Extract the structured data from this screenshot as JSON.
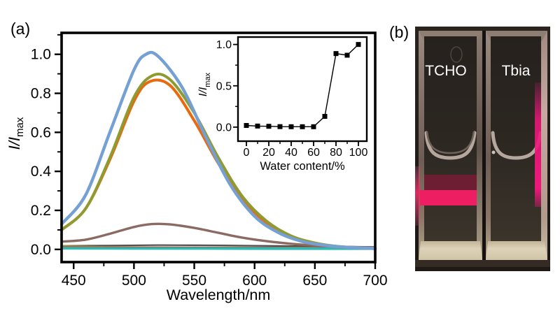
{
  "figure": {
    "panel_a_label": "(a)",
    "panel_b_label": "(b)"
  },
  "photo": {
    "left_cuvette_label": "TCHO",
    "right_cuvette_label": "Tbia",
    "colors": {
      "beam_pink": "#ee1e63",
      "edge_pink": "#f0177c",
      "dim_red": "#6d1e33",
      "base_cream": "#ddd3b8",
      "background_dark": "#231d19",
      "glass_light": "#9b8a80",
      "label_white": "#ffffff"
    }
  },
  "chart_data": [
    {
      "id": "main",
      "type": "line",
      "title": "",
      "xlabel": "Wavelength/nm",
      "ylabel_main": "I/I",
      "ylabel_sub": "max",
      "xlim": [
        440,
        700
      ],
      "ylim": [
        -0.065,
        1.11
      ],
      "grid": false,
      "legend": "none",
      "xticks": [
        450,
        500,
        550,
        600,
        650,
        700
      ],
      "xticks_minor": [
        475,
        525,
        575,
        625,
        675
      ],
      "yticks": [
        "0.0",
        "0.2",
        "0.4",
        "0.6",
        "0.8",
        "1.0"
      ],
      "yticks_minor": [
        0.1,
        0.3,
        0.5,
        0.7,
        0.9,
        1.1
      ],
      "series": [
        {
          "name": "flat-gray",
          "color": "#4f4f4f",
          "width": 2.2,
          "points": [
            [
              440,
              0.018
            ],
            [
              480,
              0.02
            ],
            [
              520,
              0.022
            ],
            [
              560,
              0.021
            ],
            [
              600,
              0.019
            ],
            [
              650,
              0.016
            ],
            [
              700,
              0.013
            ]
          ]
        },
        {
          "name": "flat-yellow",
          "color": "#d2ae19",
          "width": 2.2,
          "points": [
            [
              440,
              0.016
            ],
            [
              500,
              0.012
            ],
            [
              560,
              0.011
            ],
            [
              620,
              0.01
            ],
            [
              700,
              0.009
            ]
          ]
        },
        {
          "name": "flat-magenta",
          "color": "#a43a52",
          "width": 2.2,
          "points": [
            [
              440,
              0.012
            ],
            [
              500,
              0.011
            ],
            [
              560,
              0.01
            ],
            [
              620,
              0.009
            ],
            [
              700,
              0.008
            ]
          ]
        },
        {
          "name": "flat-teal",
          "color": "#33b7b0",
          "width": 3.8,
          "points": [
            [
              440,
              0.006
            ],
            [
              500,
              0.005
            ],
            [
              560,
              0.005
            ],
            [
              620,
              0.004
            ],
            [
              700,
              0.004
            ]
          ]
        },
        {
          "name": "curve-brown",
          "color": "#8b6a64",
          "width": 3.4,
          "points": [
            [
              440,
              0.04
            ],
            [
              460,
              0.05
            ],
            [
              480,
              0.08
            ],
            [
              500,
              0.115
            ],
            [
              515,
              0.13
            ],
            [
              530,
              0.128
            ],
            [
              550,
              0.11
            ],
            [
              570,
              0.085
            ],
            [
              590,
              0.06
            ],
            [
              610,
              0.042
            ],
            [
              630,
              0.029
            ],
            [
              650,
              0.02
            ],
            [
              670,
              0.014
            ],
            [
              700,
              0.01
            ]
          ]
        },
        {
          "name": "curve-orange",
          "color": "#e9690e",
          "width": 4.0,
          "points": [
            [
              440,
              0.1
            ],
            [
              460,
              0.21
            ],
            [
              480,
              0.46
            ],
            [
              500,
              0.76
            ],
            [
              513,
              0.86
            ],
            [
              530,
              0.84
            ],
            [
              550,
              0.66
            ],
            [
              570,
              0.44
            ],
            [
              590,
              0.25
            ],
            [
              610,
              0.13
            ],
            [
              630,
              0.062
            ],
            [
              650,
              0.028
            ],
            [
              670,
              0.013
            ],
            [
              700,
              0.004
            ]
          ]
        },
        {
          "name": "curve-olive",
          "color": "#8f9b32",
          "width": 4.0,
          "points": [
            [
              440,
              0.1
            ],
            [
              460,
              0.21
            ],
            [
              480,
              0.47
            ],
            [
              500,
              0.78
            ],
            [
              515,
              0.89
            ],
            [
              530,
              0.87
            ],
            [
              550,
              0.7
            ],
            [
              570,
              0.47
            ],
            [
              590,
              0.27
            ],
            [
              610,
              0.145
            ],
            [
              630,
              0.07
            ],
            [
              650,
              0.033
            ],
            [
              670,
              0.015
            ],
            [
              700,
              0.005
            ]
          ]
        },
        {
          "name": "curve-blue",
          "color": "#74a0d4",
          "width": 4.4,
          "points": [
            [
              440,
              0.13
            ],
            [
              460,
              0.28
            ],
            [
              480,
              0.6
            ],
            [
              500,
              0.92
            ],
            [
              510,
              1.0
            ],
            [
              520,
              0.99
            ],
            [
              540,
              0.83
            ],
            [
              560,
              0.57
            ],
            [
              580,
              0.33
            ],
            [
              600,
              0.17
            ],
            [
              620,
              0.085
            ],
            [
              640,
              0.04
            ],
            [
              660,
              0.02
            ],
            [
              680,
              0.01
            ],
            [
              700,
              0.005
            ]
          ]
        }
      ]
    },
    {
      "id": "inset",
      "type": "line-marker",
      "title": "",
      "xlabel": "Water content/%",
      "ylabel_main": "I/I",
      "ylabel_sub": "max",
      "xlim": [
        -7.5,
        107.5
      ],
      "ylim": [
        -0.17,
        1.09
      ],
      "grid": false,
      "legend": "none",
      "xticks": [
        0,
        20,
        40,
        60,
        80,
        100
      ],
      "xticks_minor": [
        10,
        30,
        50,
        70,
        90
      ],
      "yticks": [
        "0.0",
        "0.5",
        "1.0"
      ],
      "yticks_minor": [
        0.25,
        0.75
      ],
      "series": [
        {
          "name": "water-content-titration",
          "color": "#000000",
          "width": 1.4,
          "marker": "square",
          "marker_size": 7,
          "points": [
            [
              0,
              0.02
            ],
            [
              10,
              0.013
            ],
            [
              20,
              0.01
            ],
            [
              30,
              0.006
            ],
            [
              40,
              0.005
            ],
            [
              50,
              0.005
            ],
            [
              60,
              0.005
            ],
            [
              70,
              0.13
            ],
            [
              80,
              0.89
            ],
            [
              90,
              0.87
            ],
            [
              100,
              1.0
            ]
          ]
        }
      ]
    }
  ]
}
